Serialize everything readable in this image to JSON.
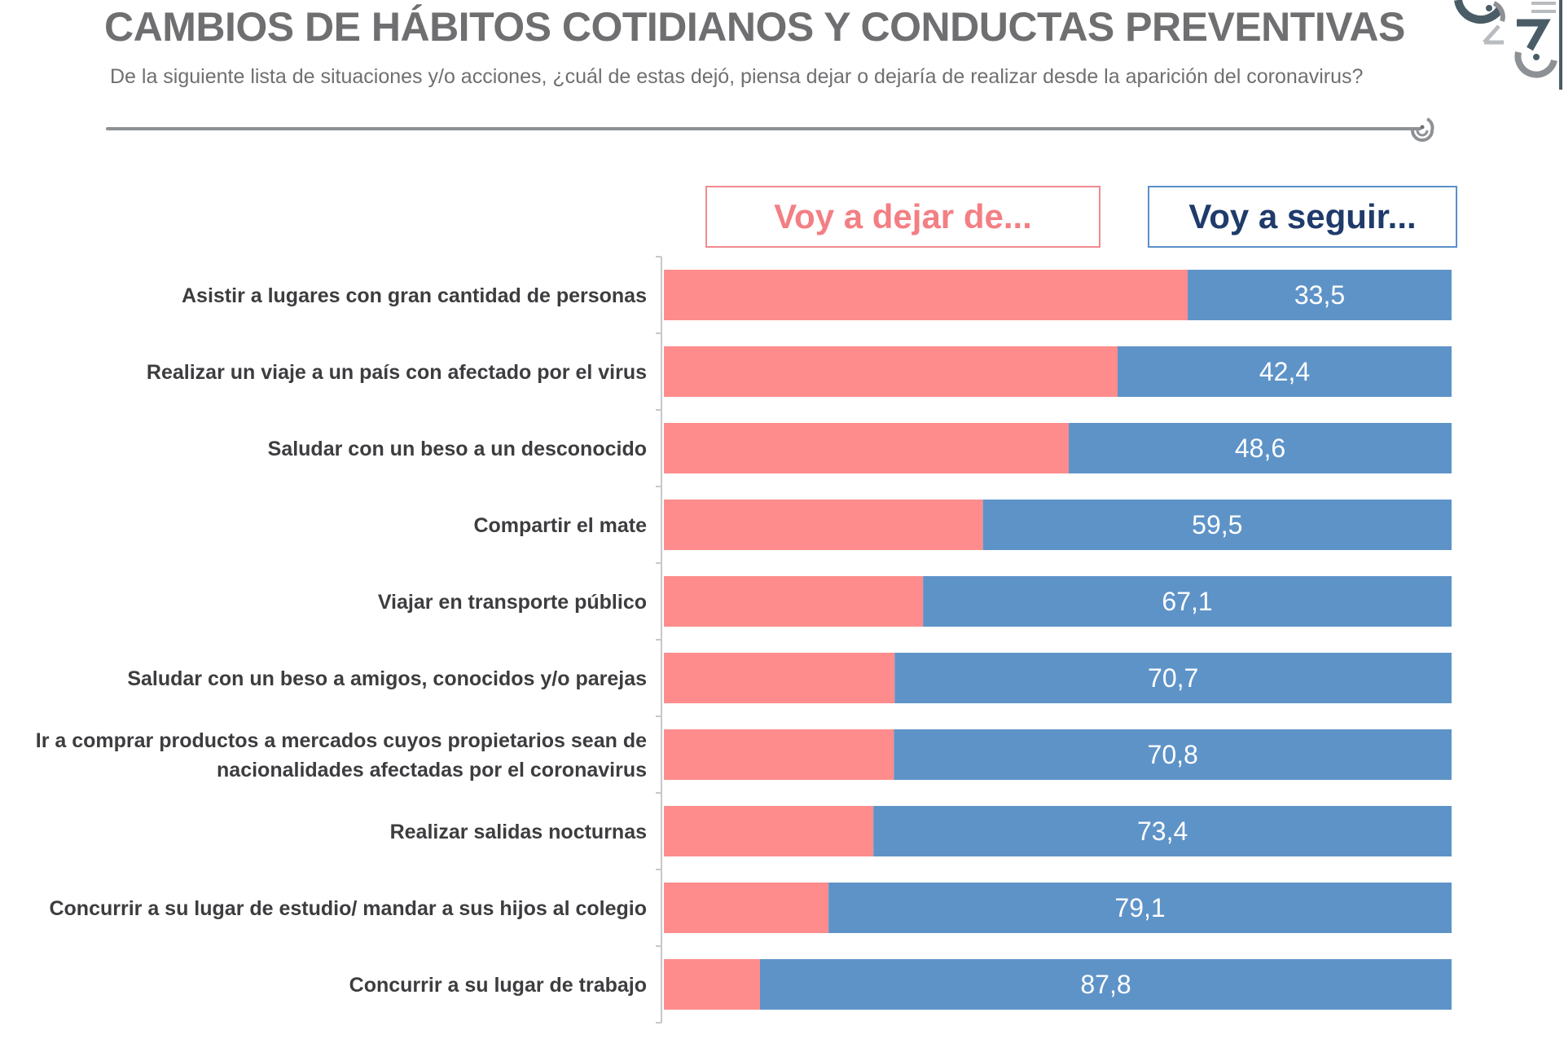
{
  "header": {
    "title": "CAMBIOS DE HÁBITOS COTIDIANOS Y CONDUCTAS PREVENTIVAS",
    "subtitle": "De la siguiente lista de situaciones y/o acciones, ¿cuál de estas dejó,  piensa dejar o dejaría  de realizar desde la aparición del coronavirus?"
  },
  "legend": {
    "dejar_label": "Voy a dejar de...",
    "seguir_label": "Voy a seguir..."
  },
  "colors": {
    "dejar": "#fe8c8c",
    "seguir": "#5e93c8",
    "title": "#6f6f72",
    "axis": "#c8c8c8"
  },
  "chart_data": {
    "type": "bar",
    "orientation": "horizontal",
    "stacked": true,
    "percent_stacked": true,
    "title": "CAMBIOS DE HÁBITOS COTIDIANOS Y CONDUCTAS PREVENTIVAS",
    "xlabel": "",
    "ylabel": "",
    "xlim": [
      0,
      100
    ],
    "grid": false,
    "legend_position": "top",
    "categories": [
      "Asistir a lugares con gran cantidad de personas",
      "Realizar un viaje a un país con afectado por el virus",
      "Saludar con un beso a un desconocido",
      "Compartir el mate",
      "Viajar en transporte público",
      "Saludar con un beso a amigos, conocidos y/o parejas",
      "Ir a comprar productos a mercados cuyos propietarios sean de nacionalidades afectadas por el coronavirus",
      "Realizar salidas nocturnas",
      "Concurrir a su lugar de estudio/ mandar a sus hijos al colegio",
      "Concurrir a su lugar de trabajo"
    ],
    "category_lines": [
      [
        "Asistir a lugares con gran cantidad de personas"
      ],
      [
        "Realizar un viaje a un país con afectado por el virus"
      ],
      [
        "Saludar con un beso a un desconocido"
      ],
      [
        "Compartir el mate"
      ],
      [
        "Viajar en transporte público"
      ],
      [
        "Saludar con un beso a amigos, conocidos y/o parejas"
      ],
      [
        "Ir a comprar productos a mercados cuyos propietarios sean de",
        "nacionalidades afectadas por el coronavirus"
      ],
      [
        "Realizar salidas nocturnas"
      ],
      [
        "Concurrir a su lugar de estudio/ mandar a sus hijos al colegio"
      ],
      [
        "Concurrir a su lugar de trabajo"
      ]
    ],
    "series": [
      {
        "name": "Voy a dejar de...",
        "values": [
          66.5,
          57.6,
          51.4,
          40.5,
          32.9,
          29.3,
          29.2,
          26.6,
          20.9,
          12.2
        ],
        "labels_shown": false
      },
      {
        "name": "Voy a seguir...",
        "values": [
          33.5,
          42.4,
          48.6,
          59.5,
          67.1,
          70.7,
          70.8,
          73.4,
          79.1,
          87.8
        ],
        "labels": [
          "33,5",
          "42,4",
          "48,6",
          "59,5",
          "67,1",
          "70,7",
          "70,8",
          "73,4",
          "79,1",
          "87,8"
        ],
        "labels_shown": true
      }
    ]
  }
}
